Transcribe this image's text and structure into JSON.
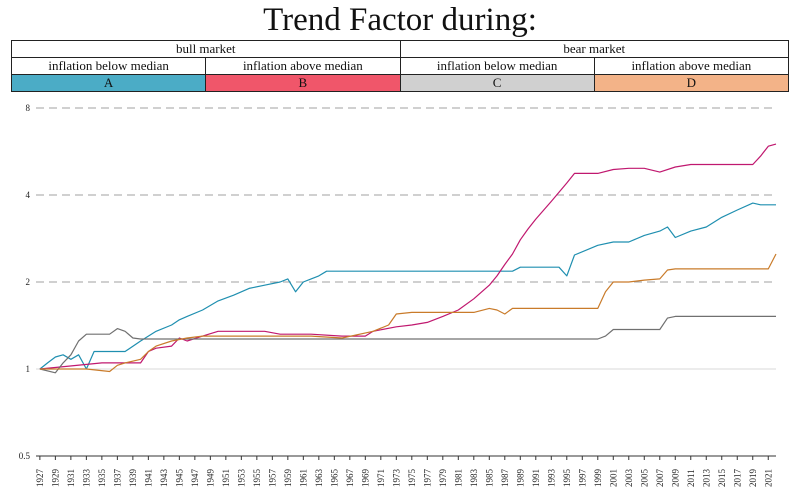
{
  "title": "Trend Factor during:",
  "legend": {
    "groups": [
      {
        "label": "bull market"
      },
      {
        "label": "bear market"
      }
    ],
    "conditions": [
      "inflation below median",
      "inflation above median",
      "inflation below median",
      "inflation above median"
    ],
    "series_labels": [
      {
        "label": "A",
        "color": "#4bacc6"
      },
      {
        "label": "B",
        "color": "#f0566a"
      },
      {
        "label": "C",
        "color": "#d0d0d0"
      },
      {
        "label": "D",
        "color": "#f3b388"
      }
    ]
  },
  "chart_data": {
    "type": "line",
    "title": "Trend Factor during:",
    "y_scale": "log2",
    "ylim": [
      0.5,
      8
    ],
    "y_ticks": [
      "0.5",
      "1",
      "2",
      "4",
      "8"
    ],
    "x_ticks": [
      "1927",
      "1929",
      "1931",
      "1933",
      "1935",
      "1937",
      "1939",
      "1941",
      "1943",
      "1945",
      "1947",
      "1949",
      "1951",
      "1953",
      "1955",
      "1957",
      "1959",
      "1961",
      "1963",
      "1965",
      "1967",
      "1969",
      "1971",
      "1973",
      "1975",
      "1977",
      "1979",
      "1981",
      "1983",
      "1985",
      "1987",
      "1989",
      "1991",
      "1993",
      "1995",
      "1997",
      "1999",
      "2001",
      "2003",
      "2005",
      "2007",
      "2009",
      "2011",
      "2013",
      "2015",
      "2017",
      "2019",
      "2021"
    ],
    "xlim": [
      1926.5,
      2022
    ],
    "grid": "horizontal dashed",
    "series": [
      {
        "name": "A",
        "color": "#1f8fb0",
        "x": [
          1927,
          1928,
          1929,
          1930,
          1931,
          1932,
          1933,
          1934,
          1938,
          1940,
          1942,
          1944,
          1945,
          1946,
          1948,
          1950,
          1952,
          1954,
          1956,
          1958,
          1959,
          1960,
          1961,
          1962,
          1963,
          1964,
          1988,
          1989,
          1994,
          1995,
          1996,
          1999,
          2001,
          2003,
          2005,
          2007,
          2008,
          2009,
          2011,
          2013,
          2015,
          2017,
          2019,
          2020,
          2021,
          2022
        ],
        "y": [
          1.0,
          1.05,
          1.1,
          1.12,
          1.08,
          1.12,
          1.0,
          1.15,
          1.15,
          1.25,
          1.35,
          1.42,
          1.48,
          1.52,
          1.6,
          1.72,
          1.8,
          1.9,
          1.95,
          2.0,
          2.05,
          1.85,
          2.0,
          2.05,
          2.1,
          2.18,
          2.18,
          2.25,
          2.25,
          2.1,
          2.48,
          2.68,
          2.75,
          2.75,
          2.9,
          3.0,
          3.1,
          2.85,
          3.0,
          3.1,
          3.35,
          3.55,
          3.75,
          3.7,
          3.7,
          3.7
        ]
      },
      {
        "name": "B",
        "color": "#c0186f",
        "x": [
          1927,
          1935,
          1940,
          1941,
          1942,
          1944,
          1945,
          1946,
          1948,
          1950,
          1956,
          1958,
          1962,
          1966,
          1969,
          1970,
          1973,
          1975,
          1977,
          1979,
          1981,
          1983,
          1985,
          1986,
          1987,
          1988,
          1989,
          1990,
          1991,
          1993,
          1995,
          1996,
          1997,
          1999,
          2001,
          2003,
          2005,
          2007,
          2009,
          2011,
          2013,
          2015,
          2017,
          2019,
          2020,
          2021,
          2022
        ],
        "y": [
          1.0,
          1.05,
          1.05,
          1.15,
          1.18,
          1.2,
          1.28,
          1.25,
          1.3,
          1.35,
          1.35,
          1.32,
          1.32,
          1.3,
          1.3,
          1.35,
          1.4,
          1.42,
          1.45,
          1.52,
          1.6,
          1.75,
          1.95,
          2.1,
          2.3,
          2.5,
          2.8,
          3.05,
          3.3,
          3.8,
          4.4,
          4.75,
          4.75,
          4.75,
          4.9,
          4.95,
          4.95,
          4.8,
          5.0,
          5.1,
          5.1,
          5.1,
          5.1,
          5.1,
          5.45,
          5.9,
          6.0
        ]
      },
      {
        "name": "C",
        "color": "#707070",
        "x": [
          1927,
          1929,
          1930,
          1931,
          1932,
          1933,
          1936,
          1937,
          1938,
          1939,
          1940,
          1942,
          1944,
          1946,
          1950,
          1956,
          1962,
          1970,
          1978,
          1985,
          1990,
          1995,
          1999,
          2000,
          2001,
          2003,
          2005,
          2007,
          2008,
          2009,
          2011,
          2013,
          2015,
          2017,
          2019,
          2020,
          2021,
          2022
        ],
        "y": [
          1.0,
          0.97,
          1.05,
          1.12,
          1.25,
          1.32,
          1.32,
          1.38,
          1.35,
          1.28,
          1.27,
          1.27,
          1.27,
          1.27,
          1.27,
          1.27,
          1.27,
          1.27,
          1.27,
          1.27,
          1.27,
          1.27,
          1.27,
          1.3,
          1.37,
          1.37,
          1.37,
          1.37,
          1.5,
          1.52,
          1.52,
          1.52,
          1.52,
          1.52,
          1.52,
          1.52,
          1.52,
          1.52
        ]
      },
      {
        "name": "D",
        "color": "#c97b2a",
        "x": [
          1927,
          1933,
          1936,
          1937,
          1938,
          1940,
          1941,
          1942,
          1944,
          1946,
          1948,
          1950,
          1958,
          1962,
          1966,
          1970,
          1972,
          1973,
          1975,
          1983,
          1985,
          1986,
          1987,
          1988,
          1990,
          1995,
          1999,
          2000,
          2001,
          2003,
          2005,
          2007,
          2008,
          2009,
          2011,
          2013,
          2015,
          2017,
          2019,
          2021,
          2022
        ],
        "y": [
          1.0,
          1.0,
          0.98,
          1.03,
          1.05,
          1.08,
          1.15,
          1.2,
          1.25,
          1.28,
          1.3,
          1.3,
          1.3,
          1.3,
          1.28,
          1.35,
          1.42,
          1.55,
          1.57,
          1.57,
          1.62,
          1.6,
          1.55,
          1.62,
          1.62,
          1.62,
          1.62,
          1.85,
          2.0,
          2.0,
          2.03,
          2.05,
          2.2,
          2.22,
          2.22,
          2.22,
          2.22,
          2.22,
          2.22,
          2.22,
          2.5
        ]
      }
    ]
  }
}
